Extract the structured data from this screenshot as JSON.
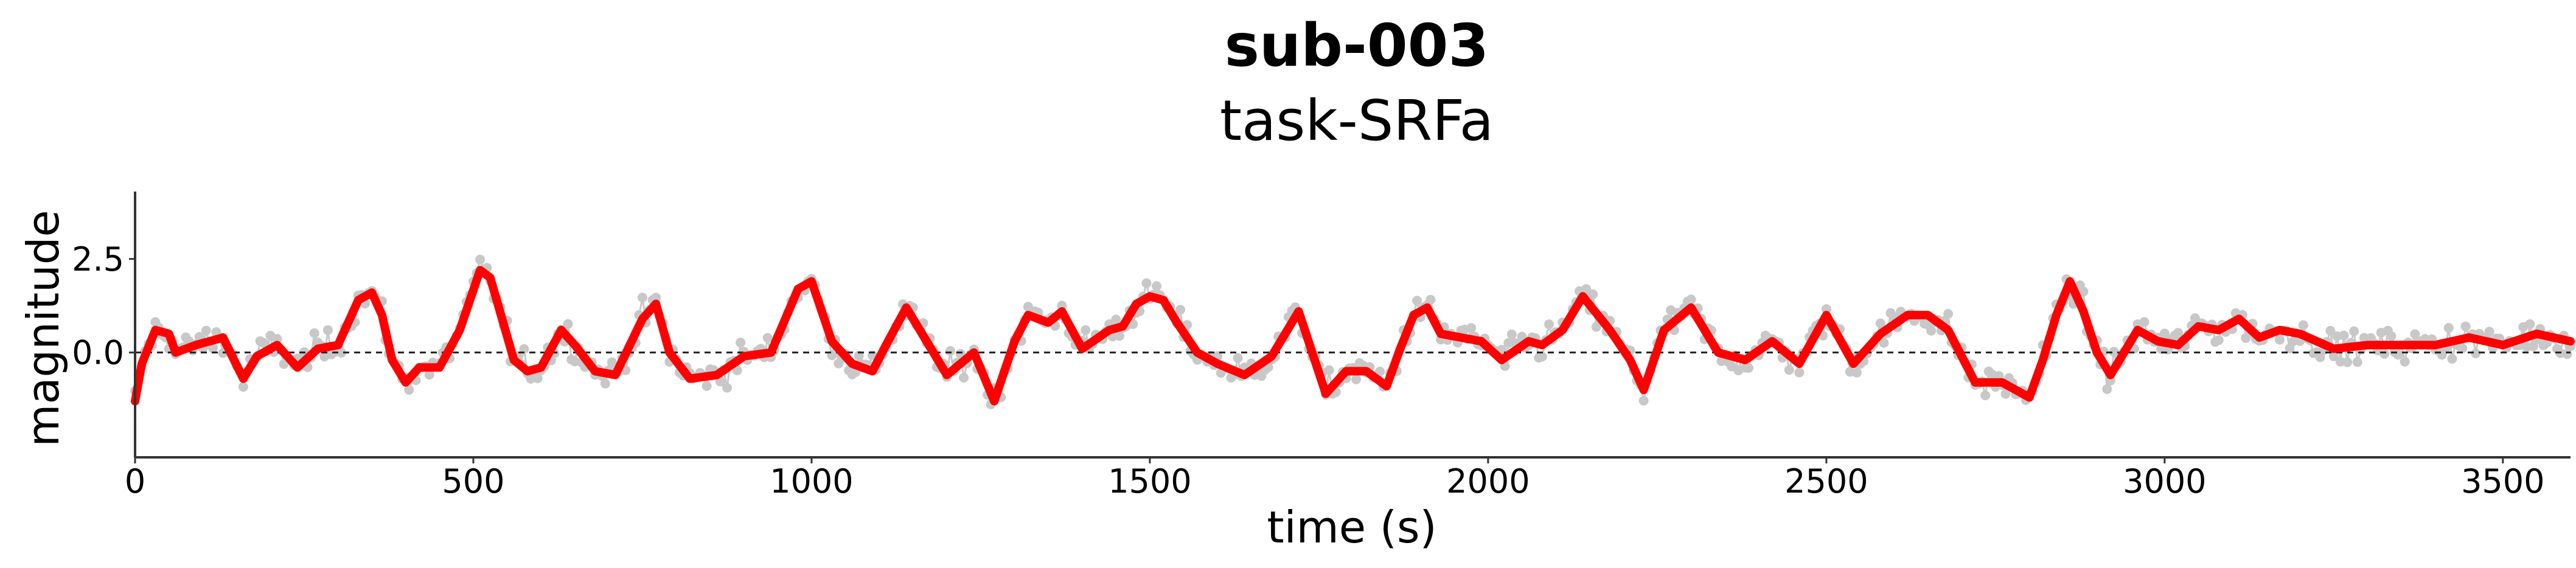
{
  "title": "sub-003",
  "subtitle": "task-SRFa",
  "chart_data": {
    "type": "line",
    "title": "sub-003",
    "subtitle": "task-SRFa",
    "xlabel": "time (s)",
    "ylabel": "magnitude",
    "xlim": [
      0,
      3600
    ],
    "ylim": [
      -2.8,
      4.3
    ],
    "x_ticks": [
      0,
      500,
      1000,
      1500,
      2000,
      2500,
      3000,
      3500
    ],
    "x_tick_labels": [
      "0",
      "500",
      "1000",
      "1500",
      "2000",
      "2500",
      "3000",
      "3500"
    ],
    "y_ticks": [
      0.0,
      2.5
    ],
    "y_tick_labels": [
      "0.0",
      "2.5"
    ],
    "reference_line": {
      "y": 0.0,
      "style": "dashed",
      "color": "#222222"
    },
    "grid": false,
    "raw_sample_interval_s": 5,
    "raw_noise_sd": 0.35,
    "raw_color": "#c8c8c8",
    "smoothed_color": "#ff0000",
    "smoothed_series": {
      "x": [
        0,
        10,
        30,
        50,
        60,
        90,
        130,
        160,
        180,
        210,
        240,
        270,
        300,
        330,
        350,
        365,
        380,
        400,
        420,
        450,
        480,
        510,
        525,
        560,
        580,
        600,
        630,
        650,
        680,
        710,
        750,
        770,
        790,
        820,
        860,
        900,
        940,
        980,
        1000,
        1030,
        1060,
        1090,
        1110,
        1140,
        1170,
        1200,
        1240,
        1270,
        1300,
        1320,
        1350,
        1370,
        1400,
        1440,
        1460,
        1480,
        1500,
        1520,
        1540,
        1570,
        1600,
        1640,
        1680,
        1720,
        1760,
        1790,
        1820,
        1850,
        1870,
        1890,
        1910,
        1930,
        1960,
        1990,
        2020,
        2060,
        2080,
        2110,
        2140,
        2180,
        2210,
        2230,
        2260,
        2300,
        2340,
        2380,
        2420,
        2460,
        2500,
        2540,
        2580,
        2620,
        2650,
        2680,
        2720,
        2760,
        2800,
        2820,
        2840,
        2860,
        2880,
        2900,
        2920,
        2960,
        2990,
        3020,
        3050,
        3080,
        3110,
        3140,
        3170,
        3200,
        3250,
        3300,
        3350,
        3400,
        3450,
        3500,
        3550,
        3600
      ],
      "y": [
        -1.3,
        -0.3,
        0.6,
        0.5,
        0.0,
        0.2,
        0.4,
        -0.7,
        -0.1,
        0.2,
        -0.4,
        0.1,
        0.2,
        1.4,
        1.6,
        1.0,
        -0.2,
        -0.8,
        -0.4,
        -0.4,
        0.6,
        2.2,
        2.0,
        -0.2,
        -0.5,
        -0.4,
        0.6,
        0.2,
        -0.5,
        -0.6,
        0.9,
        1.3,
        0.0,
        -0.7,
        -0.6,
        -0.1,
        0.0,
        1.7,
        1.9,
        0.3,
        -0.3,
        -0.5,
        0.2,
        1.2,
        0.3,
        -0.6,
        0.0,
        -1.3,
        0.3,
        1.0,
        0.8,
        1.1,
        0.1,
        0.6,
        0.7,
        1.3,
        1.5,
        1.4,
        0.8,
        0.0,
        -0.3,
        -0.6,
        -0.1,
        1.1,
        -1.1,
        -0.5,
        -0.5,
        -0.9,
        0.1,
        1.0,
        1.2,
        0.5,
        0.4,
        0.3,
        -0.2,
        0.3,
        0.2,
        0.6,
        1.5,
        0.6,
        -0.2,
        -1.0,
        0.6,
        1.2,
        0.0,
        -0.2,
        0.3,
        -0.3,
        1.0,
        -0.3,
        0.5,
        1.0,
        1.0,
        0.6,
        -0.8,
        -0.8,
        -1.2,
        -0.2,
        1.0,
        1.9,
        1.1,
        0.0,
        -0.6,
        0.6,
        0.3,
        0.2,
        0.7,
        0.6,
        0.9,
        0.4,
        0.6,
        0.5,
        0.1,
        0.2,
        0.2,
        0.2,
        0.4,
        0.2,
        0.5,
        0.3
      ]
    }
  }
}
